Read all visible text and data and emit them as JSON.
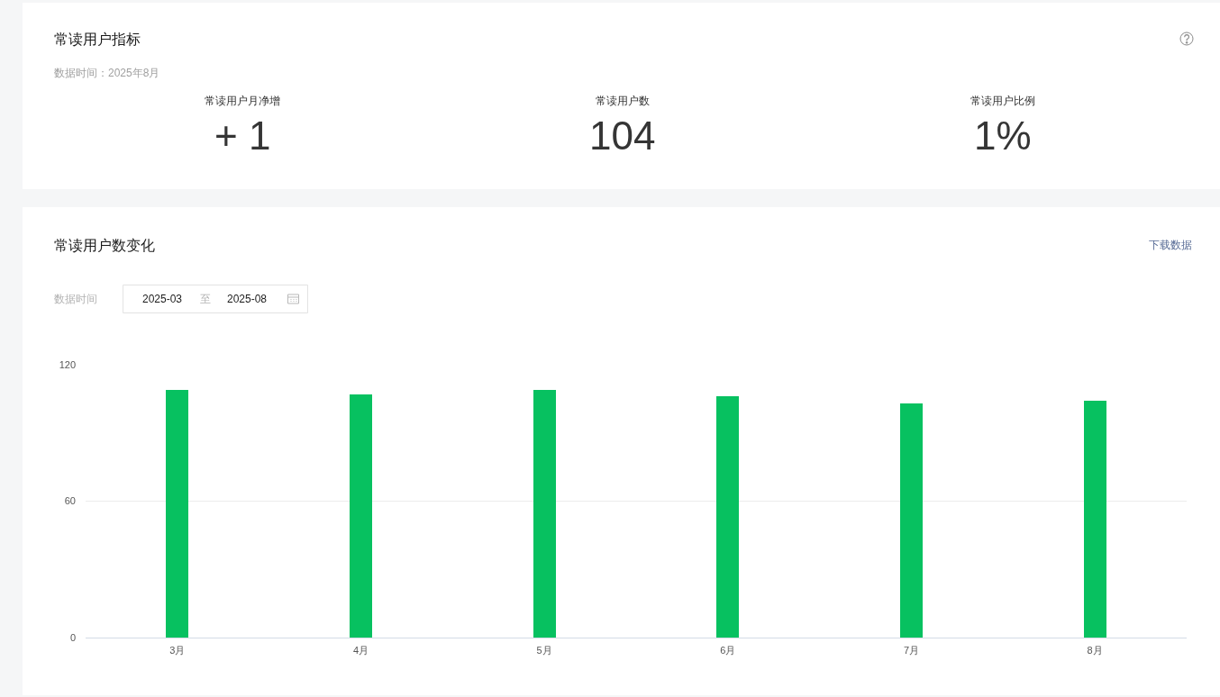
{
  "chart_data": [
    {
      "type": "other",
      "title": "常读用户指标",
      "subtitle": "数据时间：2025年8月",
      "annotations": [
        "常读用户月净增",
        "+ 1",
        "常读用户数",
        "104",
        "常读用户比例",
        "1%"
      ]
    },
    {
      "type": "bar",
      "title": "常读用户数变化",
      "annotations": [
        "下载数据",
        "数据时间",
        "2025-03",
        "至",
        "2025-08"
      ],
      "categories": [
        "3月",
        "4月",
        "5月",
        "6月",
        "7月",
        "8月"
      ],
      "values": [
        109,
        107,
        109,
        106,
        103,
        104
      ],
      "color": "#07c160",
      "ylim": [
        0,
        120
      ],
      "yticks": [
        0,
        60,
        120
      ],
      "grid": "y"
    }
  ]
}
